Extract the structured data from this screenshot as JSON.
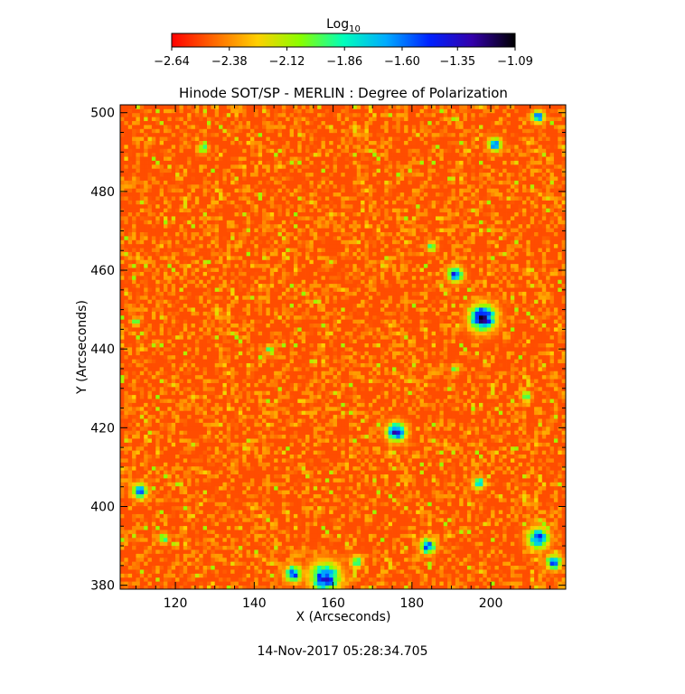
{
  "chart_data": {
    "type": "heatmap",
    "title": "Hinode SOT/SP - MERLIN : Degree of Polarization",
    "xlabel": "X (Arcseconds)",
    "ylabel": "Y (Arcseconds)",
    "xlim": [
      106,
      219
    ],
    "ylim": [
      379,
      502
    ],
    "x_ticks": [
      120,
      140,
      160,
      180,
      200
    ],
    "y_ticks": [
      380,
      400,
      420,
      440,
      460,
      480,
      500
    ],
    "colorbar": {
      "label_base": "Log",
      "label_sub": "10",
      "range": [
        -2.64,
        -1.09
      ],
      "tick_values": [
        -2.64,
        -2.38,
        -2.12,
        -1.86,
        -1.6,
        -1.35,
        -1.09
      ],
      "tick_labels": [
        "−2.64",
        "−2.38",
        "−2.12",
        "−1.86",
        "−1.60",
        "−1.35",
        "−1.09"
      ],
      "colors": [
        "#ff0000",
        "#ff6a00",
        "#ffd000",
        "#88ff00",
        "#00ffbb",
        "#00aaff",
        "#0022ff",
        "#3300aa",
        "#000000"
      ]
    },
    "background_level": -2.5,
    "features": [
      {
        "x": 198,
        "y": 448,
        "size": 3.0,
        "peak": -1.12
      },
      {
        "x": 191,
        "y": 459,
        "size": 1.8,
        "peak": -1.35
      },
      {
        "x": 176,
        "y": 419,
        "size": 2.2,
        "peak": -1.3
      },
      {
        "x": 158,
        "y": 382,
        "size": 3.5,
        "peak": -1.35
      },
      {
        "x": 150,
        "y": 383,
        "size": 2.0,
        "peak": -1.5
      },
      {
        "x": 184,
        "y": 390,
        "size": 1.8,
        "peak": -1.45
      },
      {
        "x": 212,
        "y": 392,
        "size": 2.5,
        "peak": -1.4
      },
      {
        "x": 216,
        "y": 386,
        "size": 1.8,
        "peak": -1.5
      },
      {
        "x": 111,
        "y": 404,
        "size": 1.8,
        "peak": -1.45
      },
      {
        "x": 201,
        "y": 492,
        "size": 1.6,
        "peak": -1.55
      },
      {
        "x": 212,
        "y": 499,
        "size": 1.5,
        "peak": -1.55
      },
      {
        "x": 127,
        "y": 491,
        "size": 1.2,
        "peak": -1.8
      },
      {
        "x": 185,
        "y": 466,
        "size": 1.2,
        "peak": -1.8
      },
      {
        "x": 209,
        "y": 428,
        "size": 1.2,
        "peak": -1.8
      },
      {
        "x": 197,
        "y": 406,
        "size": 1.4,
        "peak": -1.65
      },
      {
        "x": 144,
        "y": 440,
        "size": 1.0,
        "peak": -1.85
      },
      {
        "x": 117,
        "y": 392,
        "size": 1.2,
        "peak": -1.8
      },
      {
        "x": 166,
        "y": 386,
        "size": 1.4,
        "peak": -1.75
      },
      {
        "x": 110,
        "y": 447,
        "size": 1.0,
        "peak": -1.9
      },
      {
        "x": 191,
        "y": 435,
        "size": 1.0,
        "peak": -1.9
      }
    ]
  },
  "footer": {
    "timestamp": "14-Nov-2017 05:28:34.705"
  }
}
